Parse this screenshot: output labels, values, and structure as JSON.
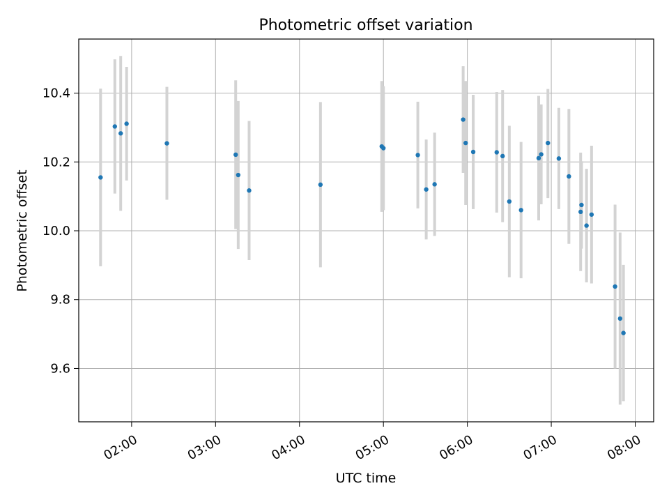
{
  "chart_data": {
    "type": "scatter",
    "title": "Photometric offset variation",
    "xlabel": "UTC time",
    "ylabel": "Photometric offset",
    "x_unit": "hours UTC",
    "xlim": [
      1.37,
      8.22
    ],
    "ylim": [
      9.445,
      10.557
    ],
    "x_ticks": [
      {
        "value": 2.0,
        "label": "02:00"
      },
      {
        "value": 3.0,
        "label": "03:00"
      },
      {
        "value": 4.0,
        "label": "04:00"
      },
      {
        "value": 5.0,
        "label": "05:00"
      },
      {
        "value": 6.0,
        "label": "06:00"
      },
      {
        "value": 7.0,
        "label": "07:00"
      },
      {
        "value": 8.0,
        "label": "08:00"
      }
    ],
    "y_ticks": [
      {
        "value": 9.6,
        "label": "9.6"
      },
      {
        "value": 9.8,
        "label": "9.8"
      },
      {
        "value": 10.0,
        "label": "10.0"
      },
      {
        "value": 10.2,
        "label": "10.2"
      },
      {
        "value": 10.4,
        "label": "10.4"
      }
    ],
    "grid": true,
    "point_color": "#1f77b4",
    "errorbar_color": "#d3d3d3",
    "points": [
      {
        "x": 1.63,
        "y": 10.155,
        "ylow": 9.897,
        "yhigh": 10.413
      },
      {
        "x": 1.8,
        "y": 10.303,
        "ylow": 10.108,
        "yhigh": 10.498
      },
      {
        "x": 1.87,
        "y": 10.283,
        "ylow": 10.058,
        "yhigh": 10.508
      },
      {
        "x": 1.94,
        "y": 10.311,
        "ylow": 10.146,
        "yhigh": 10.476
      },
      {
        "x": 2.42,
        "y": 10.254,
        "ylow": 10.09,
        "yhigh": 10.418
      },
      {
        "x": 3.24,
        "y": 10.221,
        "ylow": 10.005,
        "yhigh": 10.437
      },
      {
        "x": 3.27,
        "y": 10.162,
        "ylow": 9.947,
        "yhigh": 10.377
      },
      {
        "x": 3.4,
        "y": 10.117,
        "ylow": 9.915,
        "yhigh": 10.319
      },
      {
        "x": 4.25,
        "y": 10.134,
        "ylow": 9.894,
        "yhigh": 10.374
      },
      {
        "x": 4.98,
        "y": 10.245,
        "ylow": 10.055,
        "yhigh": 10.435
      },
      {
        "x": 5.0,
        "y": 10.24,
        "ylow": 10.06,
        "yhigh": 10.42
      },
      {
        "x": 5.41,
        "y": 10.22,
        "ylow": 10.065,
        "yhigh": 10.375
      },
      {
        "x": 5.51,
        "y": 10.12,
        "ylow": 9.975,
        "yhigh": 10.265
      },
      {
        "x": 5.61,
        "y": 10.135,
        "ylow": 9.985,
        "yhigh": 10.285
      },
      {
        "x": 5.95,
        "y": 10.323,
        "ylow": 10.168,
        "yhigh": 10.478
      },
      {
        "x": 5.98,
        "y": 10.255,
        "ylow": 10.075,
        "yhigh": 10.435
      },
      {
        "x": 6.07,
        "y": 10.229,
        "ylow": 10.063,
        "yhigh": 10.395
      },
      {
        "x": 6.35,
        "y": 10.228,
        "ylow": 10.053,
        "yhigh": 10.403
      },
      {
        "x": 6.42,
        "y": 10.217,
        "ylow": 10.025,
        "yhigh": 10.409
      },
      {
        "x": 6.5,
        "y": 10.085,
        "ylow": 9.865,
        "yhigh": 10.305
      },
      {
        "x": 6.64,
        "y": 10.06,
        "ylow": 9.862,
        "yhigh": 10.258
      },
      {
        "x": 6.85,
        "y": 10.211,
        "ylow": 10.03,
        "yhigh": 10.392
      },
      {
        "x": 6.88,
        "y": 10.222,
        "ylow": 10.077,
        "yhigh": 10.367
      },
      {
        "x": 6.96,
        "y": 10.255,
        "ylow": 10.095,
        "yhigh": 10.412
      },
      {
        "x": 7.09,
        "y": 10.21,
        "ylow": 10.063,
        "yhigh": 10.357
      },
      {
        "x": 7.21,
        "y": 10.158,
        "ylow": 9.962,
        "yhigh": 10.354
      },
      {
        "x": 7.35,
        "y": 10.055,
        "ylow": 9.883,
        "yhigh": 10.227
      },
      {
        "x": 7.36,
        "y": 10.075,
        "ylow": 9.948,
        "yhigh": 10.202
      },
      {
        "x": 7.42,
        "y": 10.015,
        "ylow": 9.85,
        "yhigh": 10.18
      },
      {
        "x": 7.48,
        "y": 10.047,
        "ylow": 9.847,
        "yhigh": 10.247
      },
      {
        "x": 7.76,
        "y": 9.838,
        "ylow": 9.6,
        "yhigh": 10.076
      },
      {
        "x": 7.82,
        "y": 9.745,
        "ylow": 9.495,
        "yhigh": 9.995
      },
      {
        "x": 7.86,
        "y": 9.703,
        "ylow": 9.505,
        "yhigh": 9.901
      }
    ]
  }
}
